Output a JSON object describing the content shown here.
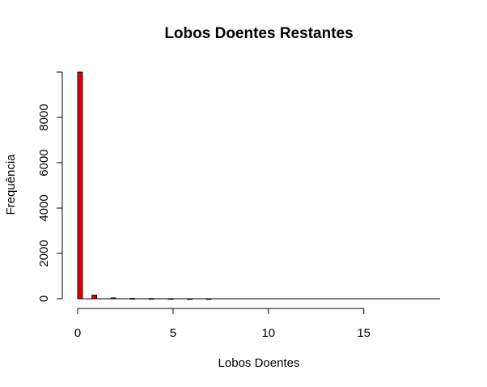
{
  "chart_data": {
    "type": "bar",
    "title": "Lobos Doentes Restantes",
    "xlabel": "Lobos Doentes",
    "ylabel": "Frequência",
    "xlim": [
      0,
      19
    ],
    "ylim": [
      0,
      10000
    ],
    "x_ticks": [
      0,
      5,
      10,
      15
    ],
    "y_ticks": [
      0,
      2000,
      4000,
      6000,
      8000
    ],
    "bin_width": 0.25,
    "bars": [
      {
        "x0": 0,
        "x1": 0.25,
        "value": 10000
      },
      {
        "x0": 0.75,
        "x1": 1,
        "value": 160
      },
      {
        "x0": 1.75,
        "x1": 2,
        "value": 40
      },
      {
        "x0": 2.75,
        "x1": 3,
        "value": 15
      },
      {
        "x0": 3.75,
        "x1": 4,
        "value": 8
      },
      {
        "x0": 4.75,
        "x1": 5,
        "value": 4
      },
      {
        "x0": 5.75,
        "x1": 6,
        "value": 2
      },
      {
        "x0": 6.75,
        "x1": 7,
        "value": 1
      }
    ],
    "bar_color": "#e00000",
    "grid": false,
    "legend": "none"
  }
}
